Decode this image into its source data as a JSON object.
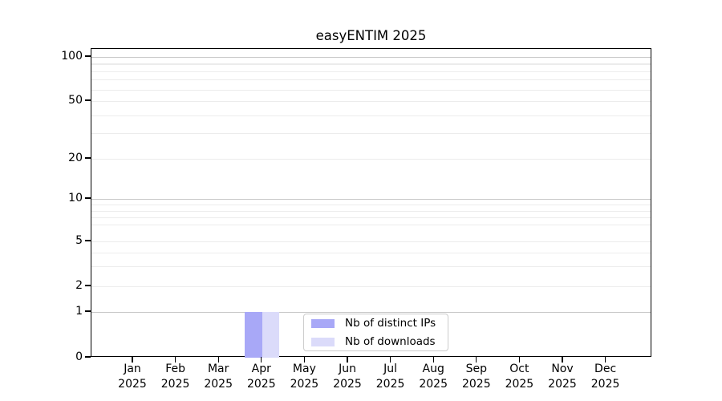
{
  "figure": {
    "background": "#ffffff"
  },
  "chart_data": {
    "type": "bar",
    "title": "easyENTIM 2025",
    "x_categories": [
      "Jan",
      "Feb",
      "Mar",
      "Apr",
      "May",
      "Jun",
      "Jul",
      "Aug",
      "Sep",
      "Oct",
      "Nov",
      "Dec"
    ],
    "x_year_line": "2025",
    "y_scale": "log-like with 0 baseline",
    "y_ticks": [
      100,
      50,
      20,
      10,
      5,
      2,
      1,
      0
    ],
    "y_minor_lines": [
      90,
      80,
      70,
      60,
      40,
      30,
      9,
      8,
      7,
      6,
      4,
      3
    ],
    "ylim": [
      0,
      114
    ],
    "grid": "horizontal only",
    "legend_position": "inside plot, lower center",
    "series": [
      {
        "name": "Nb of distinct IPs",
        "color": "#a8a8f7",
        "values": [
          0,
          0,
          0,
          1,
          0,
          0,
          0,
          0,
          0,
          0,
          0,
          0
        ]
      },
      {
        "name": "Nb of downloads",
        "color": "#dbdbfa",
        "values": [
          0,
          0,
          0,
          1,
          0,
          0,
          0,
          0,
          0,
          0,
          0,
          0
        ]
      }
    ]
  },
  "colors": {
    "axis": "#000000",
    "text": "#000000",
    "grid_major": "#c8c8c8",
    "grid_minor": "#ececec",
    "legend_border": "#cccccc"
  }
}
